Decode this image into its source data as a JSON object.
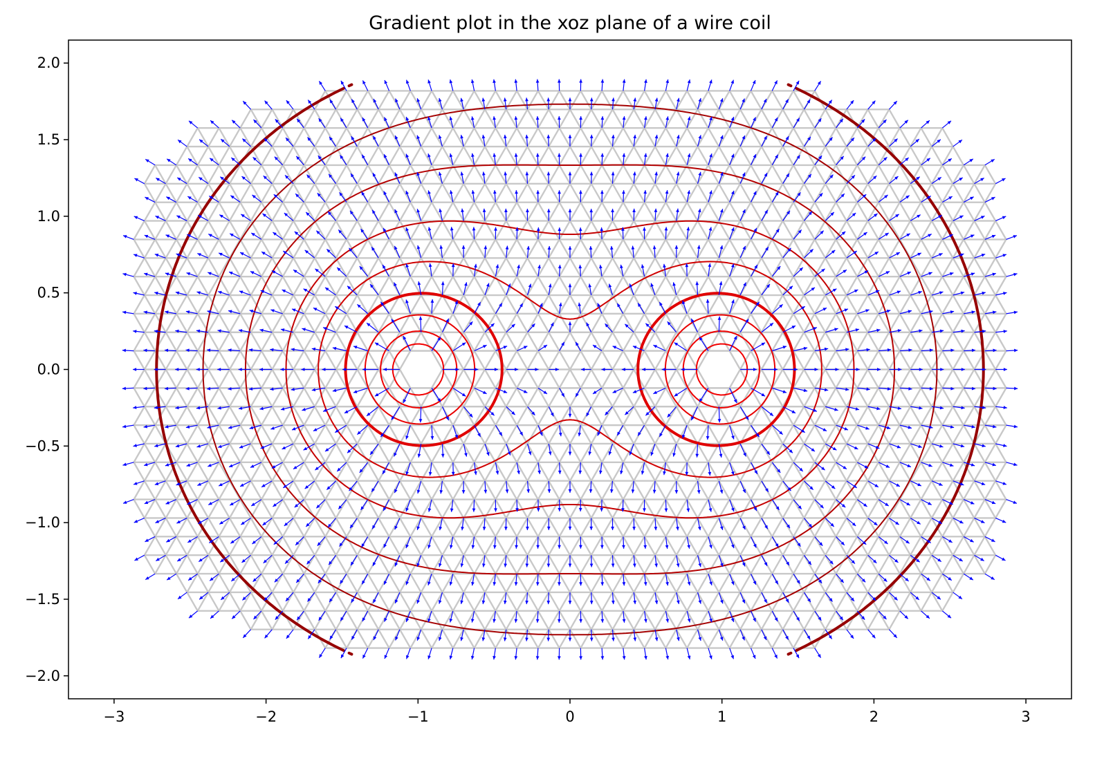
{
  "chart_data": {
    "type": "quiver-contour",
    "title": "Gradient plot in the xoz plane of a wire coil",
    "xlabel": "",
    "ylabel": "",
    "xlim": [
      -3.3,
      3.3
    ],
    "ylim": [
      -2.15,
      2.15
    ],
    "xticks": [
      -3,
      -2,
      -1,
      0,
      1,
      2,
      3
    ],
    "xtick_labels": [
      "−3",
      "−2",
      "−1",
      "0",
      "1",
      "2",
      "3"
    ],
    "yticks": [
      -2.0,
      -1.5,
      -1.0,
      -0.5,
      0.0,
      0.5,
      1.0,
      1.5,
      2.0
    ],
    "ytick_labels": [
      "−2.0",
      "−1.5",
      "−1.0",
      "−0.5",
      "0.0",
      "0.5",
      "1.0",
      "1.5",
      "2.0"
    ],
    "grid": false,
    "coil_wire_positions": [
      [
        -1,
        0
      ],
      [
        1,
        0
      ]
    ],
    "mesh": {
      "description": "triangular mesh",
      "x_range": [
        -2.9,
        2.9
      ],
      "y_range": [
        -1.9,
        1.9
      ],
      "hole_radius": 0.09,
      "color": "#c8c8c8"
    },
    "contour_levels": [
      0.5,
      0.6,
      0.7,
      0.85,
      1.0,
      1.2,
      1.5,
      1.9,
      2.5,
      3.3,
      4.5,
      6.5
    ],
    "bold_levels": [
      0.85,
      2.5
    ],
    "contour_colors": [
      "#700000",
      "#7d0000",
      "#880000",
      "#960000",
      "#a40000",
      "#b40000",
      "#c40000",
      "#d00000",
      "#e00000",
      "#e80000",
      "#ee0000",
      "#f20000"
    ],
    "quiver_color": "#0000ff"
  }
}
